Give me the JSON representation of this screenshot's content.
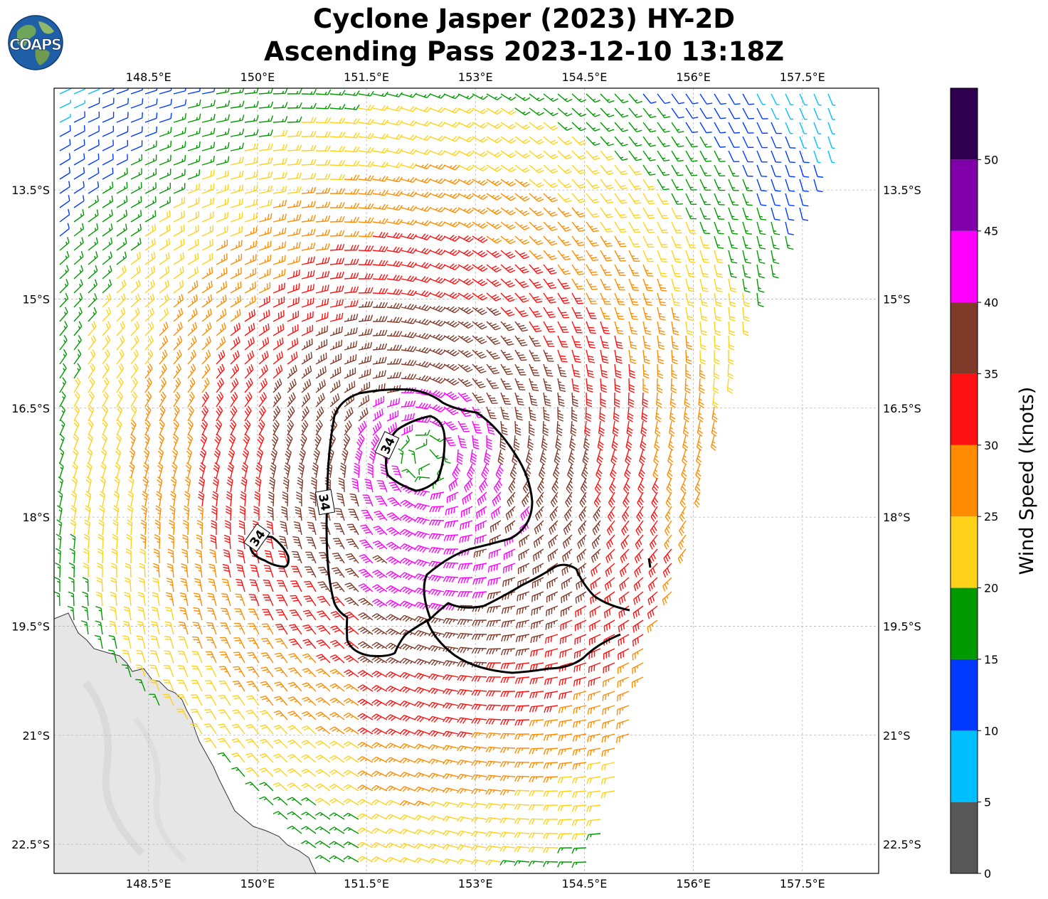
{
  "title": {
    "line1": "Cyclone Jasper (2023) HY-2D",
    "line2": "Ascending Pass 2023-12-10 13:18Z"
  },
  "logo": {
    "text": "COAPS",
    "icon": "globe-icon"
  },
  "axes": {
    "lon_ticks": [
      "148.5°E",
      "150°E",
      "151.5°E",
      "153°E",
      "154.5°E",
      "156°E",
      "157.5°E"
    ],
    "lat_ticks": [
      "13.5°S",
      "15°S",
      "16.5°S",
      "18°S",
      "19.5°S",
      "21°S",
      "22.5°S"
    ]
  },
  "contour": {
    "label": "34",
    "color": "#000000"
  },
  "colorbar": {
    "label": "Wind Speed (knots)",
    "ticks": [
      "0",
      "5",
      "10",
      "15",
      "20",
      "25",
      "30",
      "35",
      "40",
      "45",
      "50"
    ],
    "bins": [
      {
        "from": 0,
        "to": 5,
        "color": "#575757"
      },
      {
        "from": 5,
        "to": 10,
        "color": "#00bfff"
      },
      {
        "from": 10,
        "to": 15,
        "color": "#0039ff"
      },
      {
        "from": 15,
        "to": 20,
        "color": "#009900"
      },
      {
        "from": 20,
        "to": 25,
        "color": "#ffd21a"
      },
      {
        "from": 25,
        "to": 30,
        "color": "#ff8c00"
      },
      {
        "from": 30,
        "to": 35,
        "color": "#ff1111"
      },
      {
        "from": 35,
        "to": 40,
        "color": "#7f3a2a"
      },
      {
        "from": 40,
        "to": 45,
        "color": "#ff00ff"
      },
      {
        "from": 45,
        "to": 50,
        "color": "#8000aa"
      },
      {
        "from": 50,
        "to": 55,
        "color": "#2e004f"
      }
    ]
  },
  "chart_data": {
    "type": "wind-barb-map",
    "units": "knots",
    "contour_level_knots": 34,
    "lon_range_deg_e": [
      147.2,
      158.55
    ],
    "lat_range_deg_s": [
      12.1,
      22.9
    ],
    "cyclone_center": {
      "lon": 152.3,
      "lat_s": 17.2
    }
  }
}
